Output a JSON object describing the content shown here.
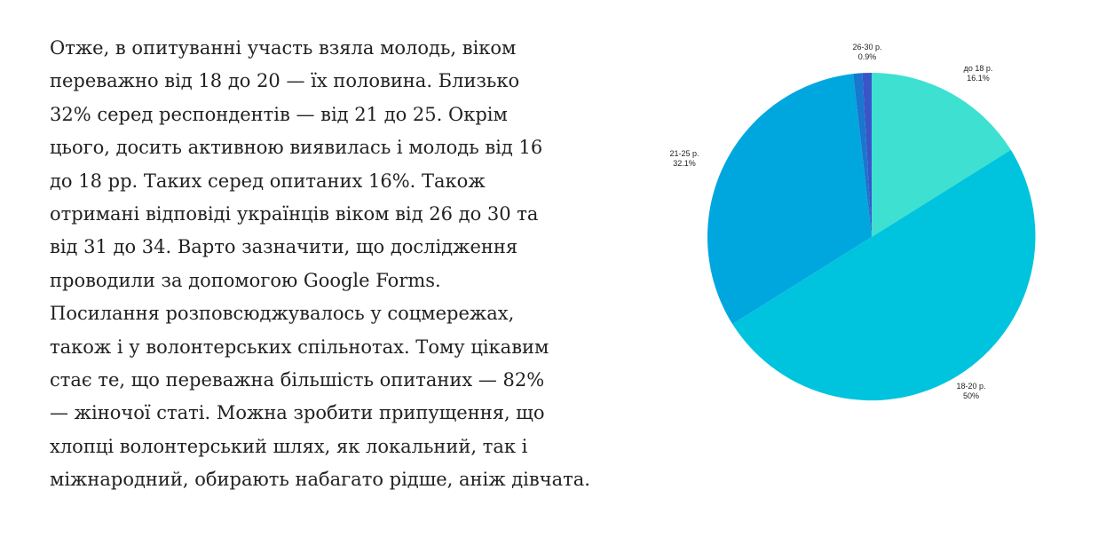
{
  "article": {
    "lines": [
      "Отже, в опитуванні участь взяла молодь, віком",
      "переважно від 18 до 20 — їх половина. Близько",
      "32% серед респондентів — від 21 до 25. Окрім",
      "цього, досить активною виявилась і молодь від 16",
      "до 18 рр. Таких серед опитаних 16%. Також",
      "отримані відповіді українців віком від 26 до 30 та",
      "від 31 до 34. Варто зазначити, що дослідження",
      "проводили за допомогою Google Forms.",
      "Посилання розповсюджувалось у соцмережах,",
      "також і у волонтерських спільнотах. Тому цікавим",
      "стає те, що переважна більшість опитаних — 82%",
      "— жіночої статі. Можна зробити припущення, що",
      "хлопці волонтерський шлях, як локальний, так і",
      "міжнародний, обирають набагато рідше, аніж дівчата."
    ]
  },
  "chart_data": {
    "type": "pie",
    "title": "",
    "slices": [
      {
        "label": "до 18 р.",
        "value": 16.1,
        "value_label": "16.1%",
        "color": "#3ee0d2"
      },
      {
        "label": "18-20 р.",
        "value": 50,
        "value_label": "50%",
        "color": "#00c4de"
      },
      {
        "label": "21-25 р.",
        "value": 32.1,
        "value_label": "32.1%",
        "color": "#00a7df"
      },
      {
        "label": "26-30 р.",
        "value": 0.9,
        "value_label": "0.9%",
        "color": "#1977cf"
      },
      {
        "label": "",
        "value": 0.9,
        "value_label": "",
        "color": "#3a55c8"
      }
    ],
    "start_angle_deg": 0,
    "direction": "clockwise",
    "legend": "none",
    "labels": "outside"
  }
}
